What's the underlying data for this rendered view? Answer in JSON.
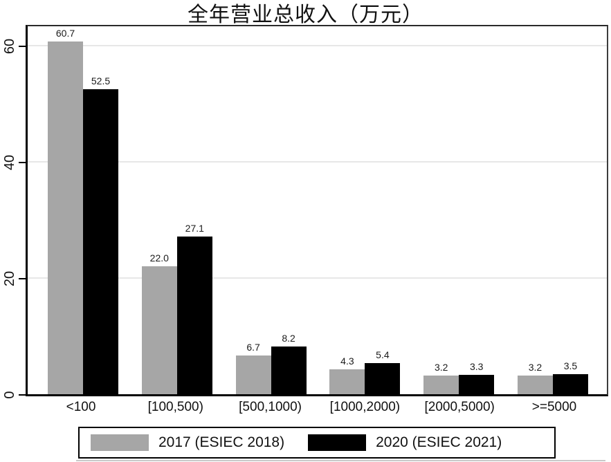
{
  "chart_data": {
    "type": "bar",
    "title": "全年营业总收入（万元）",
    "categories": [
      "<100",
      "[100,500)",
      "[500,1000)",
      "[1000,2000)",
      "[2000,5000)",
      ">=5000"
    ],
    "series": [
      {
        "name": "2017 (ESIEC 2018)",
        "color": "#a6a6a6",
        "values": [
          60.7,
          22.0,
          6.7,
          4.3,
          3.2,
          3.2
        ]
      },
      {
        "name": "2020 (ESIEC 2021)",
        "color": "#000000",
        "values": [
          52.5,
          27.1,
          8.2,
          5.4,
          3.3,
          3.5
        ]
      }
    ],
    "value_label_decimals": 1,
    "xlabel": "",
    "ylabel": "",
    "ylim": [
      0,
      63.8
    ],
    "yticks": [
      0,
      20,
      40,
      60
    ],
    "grid": true,
    "gridline_color": "#e7e7e7",
    "legend_position": "bottom"
  }
}
